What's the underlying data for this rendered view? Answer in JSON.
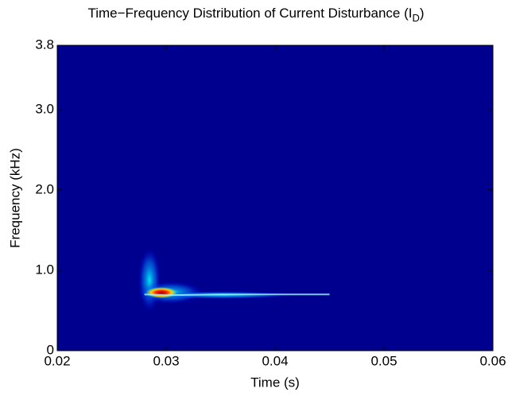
{
  "chart_data": {
    "type": "spectrogram",
    "title": "Time−Frequency Distribution of Current Disturbance (I",
    "title_subscript": "D",
    "title_end": ")",
    "x_label": "Time (s)",
    "y_label": "Frequency (kHz)",
    "x": [
      0.028,
      0.03,
      0.035,
      0.04,
      0.045
    ],
    "values": [
      0.7,
      0.69,
      0.7,
      0.7,
      0.7
    ],
    "color": "#9ff6ff",
    "background": "#00008f",
    "xlim": [
      0.02,
      0.06
    ],
    "ylim": [
      0,
      3.8
    ],
    "xticks": [
      0.02,
      0.03,
      0.04,
      0.05,
      0.06
    ],
    "yticks": [
      0,
      {
        "value": 1,
        "label": "1.0"
      },
      {
        "value": 2,
        "label": "2.0"
      },
      {
        "value": 3,
        "label": "3.0"
      },
      3.8
    ]
  }
}
